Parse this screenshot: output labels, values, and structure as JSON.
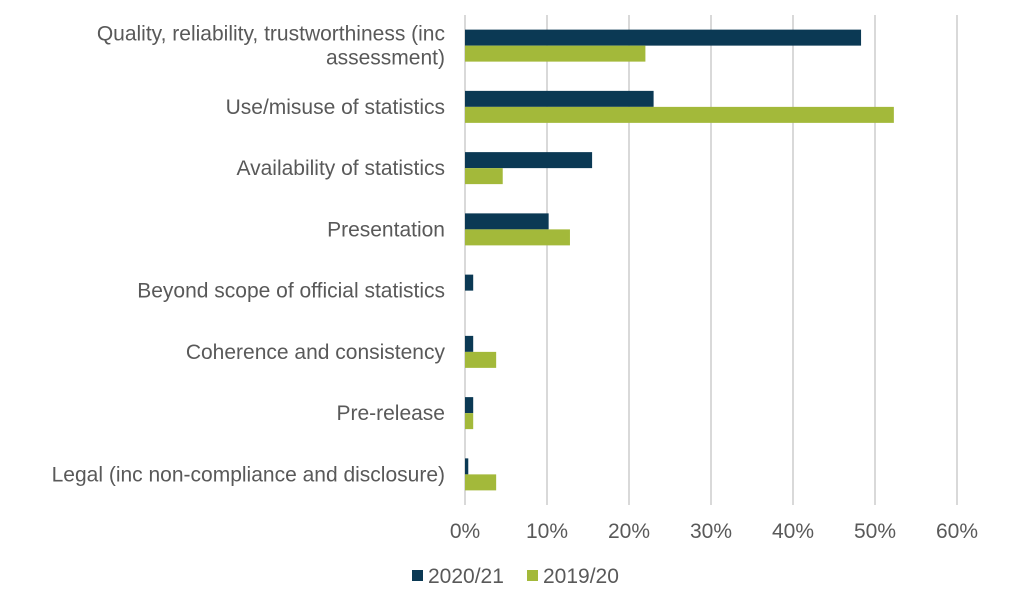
{
  "chart_data": {
    "type": "bar",
    "orientation": "horizontal",
    "categories": [
      "Quality, reliability, trustworthiness (inc assessment)",
      "Use/misuse of statistics",
      "Availability of statistics",
      "Presentation",
      "Beyond scope of official statistics",
      "Coherence and consistency",
      "Pre-release",
      "Legal (inc non-compliance and disclosure)"
    ],
    "category_lines": [
      [
        "Quality, reliability, trustworthiness (inc",
        "assessment)"
      ],
      [
        "Use/misuse of statistics"
      ],
      [
        "Availability of statistics"
      ],
      [
        "Presentation"
      ],
      [
        "Beyond scope of official statistics"
      ],
      [
        "Coherence and consistency"
      ],
      [
        "Pre-release"
      ],
      [
        "Legal (inc non-compliance and disclosure)"
      ]
    ],
    "series": [
      {
        "name": "2020/21",
        "color": "#0b3954",
        "values": [
          48.3,
          23.0,
          15.5,
          10.2,
          1.0,
          1.0,
          1.0,
          0.4
        ]
      },
      {
        "name": "2019/20",
        "color": "#a3b93a",
        "values": [
          22.0,
          52.3,
          4.6,
          12.8,
          0,
          3.8,
          1.0,
          3.8
        ]
      }
    ],
    "xlim": [
      0,
      60
    ],
    "x_ticks": [
      0,
      10,
      20,
      30,
      40,
      50,
      60
    ],
    "x_tick_labels": [
      "0%",
      "10%",
      "20%",
      "30%",
      "40%",
      "50%",
      "60%"
    ],
    "grid": true,
    "legend_position": "bottom"
  }
}
